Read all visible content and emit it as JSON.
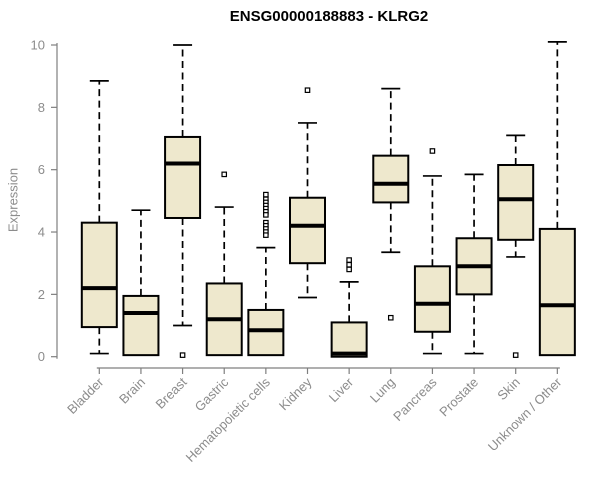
{
  "style": {
    "background": "#ffffff",
    "box_fill": "#EEE8CD",
    "box_stroke": "#000000",
    "axis_color": "#7f7f7f",
    "tick_label_color": "#8c8c8c",
    "title_color": "#000000"
  },
  "chart_data": {
    "type": "boxplot",
    "title": "ENSG00000188883 - KLRG2",
    "xlabel": "",
    "ylabel": "Expression",
    "ylim": [
      0,
      10
    ],
    "yticks": [
      0,
      2,
      4,
      6,
      8,
      10
    ],
    "grid": "off",
    "legend": "none",
    "categories": [
      "Bladder",
      "Brain",
      "Breast",
      "Gastric",
      "Hematopoietic cells",
      "Kidney",
      "Liver",
      "Lung",
      "Pancreas",
      "Prostate",
      "Skin",
      "Unknown / Other"
    ],
    "series": [
      {
        "category": "Bladder",
        "whisker_low": 0.1,
        "q1": 0.95,
        "median": 2.2,
        "q3": 4.3,
        "whisker_high": 8.85,
        "outliers": []
      },
      {
        "category": "Brain",
        "whisker_low": 0.05,
        "q1": 0.05,
        "median": 1.4,
        "q3": 1.95,
        "whisker_high": 4.7,
        "outliers": []
      },
      {
        "category": "Breast",
        "whisker_low": 1.0,
        "q1": 4.45,
        "median": 6.2,
        "q3": 7.05,
        "whisker_high": 10.0,
        "outliers": [
          0.05
        ]
      },
      {
        "category": "Gastric",
        "whisker_low": 0.05,
        "q1": 0.05,
        "median": 1.2,
        "q3": 2.35,
        "whisker_high": 4.8,
        "outliers": [
          5.85
        ]
      },
      {
        "category": "Hematopoietic cells",
        "whisker_low": 0.05,
        "q1": 0.05,
        "median": 0.85,
        "q3": 1.5,
        "whisker_high": 3.5,
        "outliers": [
          5.2,
          5.05,
          4.95,
          4.85,
          4.75,
          4.65,
          4.55,
          4.3,
          4.2,
          4.1,
          4.0,
          3.9
        ]
      },
      {
        "category": "Kidney",
        "whisker_low": 1.9,
        "q1": 3.0,
        "median": 4.2,
        "q3": 5.1,
        "whisker_high": 7.5,
        "outliers": [
          8.55
        ]
      },
      {
        "category": "Liver",
        "whisker_low": 0.0,
        "q1": 0.0,
        "median": 0.1,
        "q3": 1.1,
        "whisker_high": 2.4,
        "outliers": [
          3.1,
          2.95,
          2.8
        ]
      },
      {
        "category": "Lung",
        "whisker_low": 3.35,
        "q1": 4.95,
        "median": 5.55,
        "q3": 6.45,
        "whisker_high": 8.6,
        "outliers": [
          1.25
        ]
      },
      {
        "category": "Pancreas",
        "whisker_low": 0.1,
        "q1": 0.8,
        "median": 1.7,
        "q3": 2.9,
        "whisker_high": 5.8,
        "outliers": [
          6.6
        ]
      },
      {
        "category": "Prostate",
        "whisker_low": 0.1,
        "q1": 2.0,
        "median": 2.9,
        "q3": 3.8,
        "whisker_high": 5.85,
        "outliers": []
      },
      {
        "category": "Skin",
        "whisker_low": 3.2,
        "q1": 3.75,
        "median": 5.05,
        "q3": 6.15,
        "whisker_high": 7.1,
        "outliers": [
          0.05
        ]
      },
      {
        "category": "Unknown / Other",
        "whisker_low": 0.05,
        "q1": 0.05,
        "median": 1.65,
        "q3": 4.1,
        "whisker_high": 10.1,
        "outliers": []
      }
    ]
  }
}
